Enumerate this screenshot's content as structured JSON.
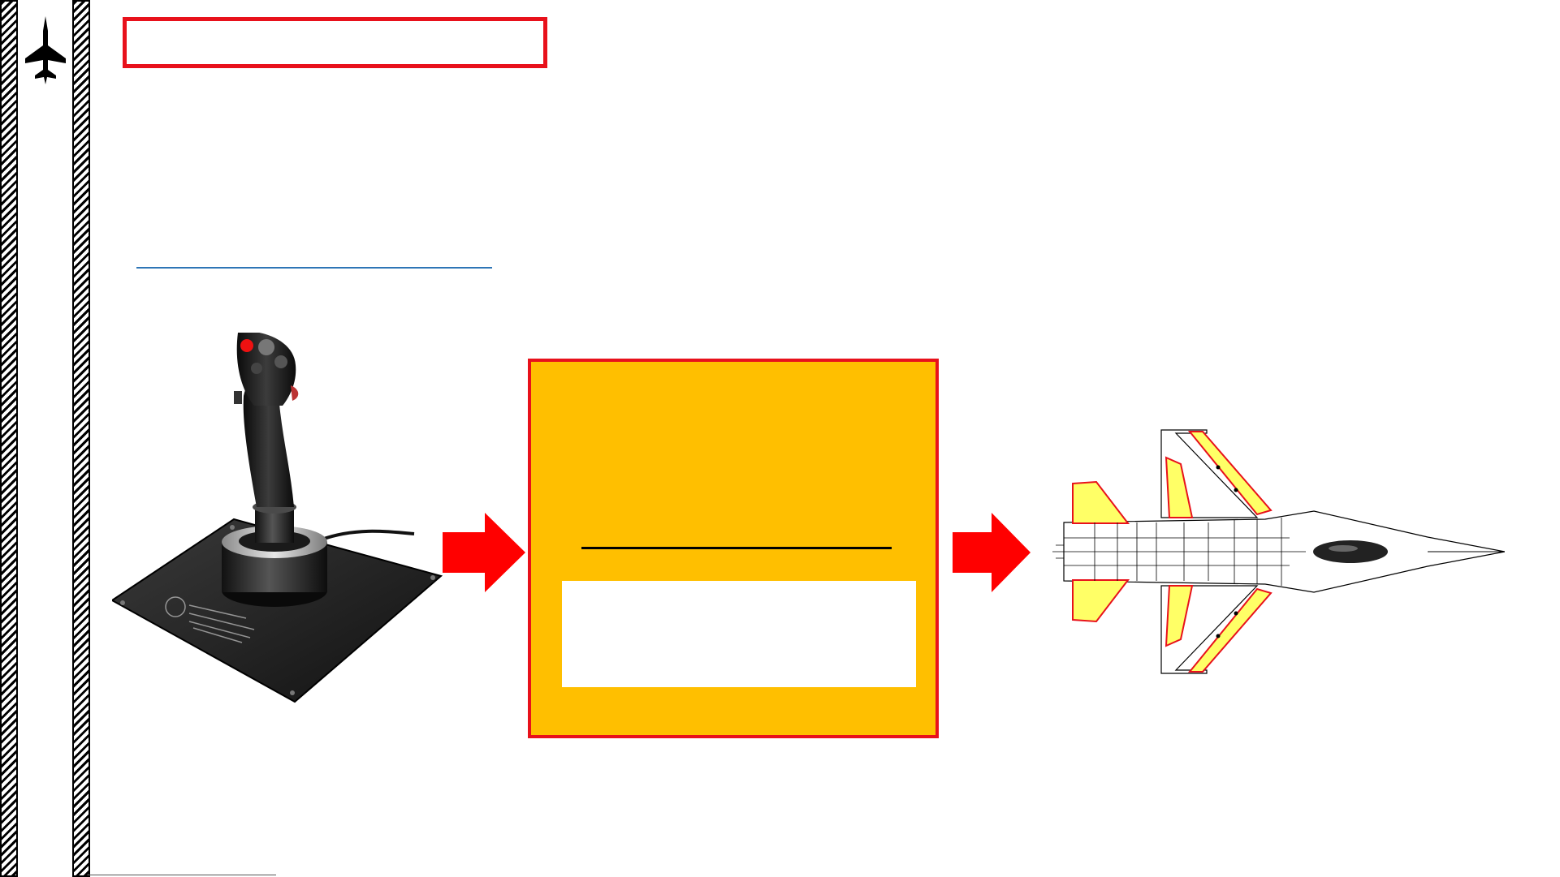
{
  "slide": {
    "title": "",
    "colors": {
      "accent_red": "#e8111b",
      "box_fill": "#ffbf00",
      "link_rule": "#2e75b6",
      "wing_fill": "#ffff66"
    },
    "icons": {
      "logo": "fighter-jet-silhouette-icon",
      "arrow": "right-arrow-icon"
    },
    "images": {
      "joystick": "hotas-joystick-image",
      "aircraft": "fighter-jet-top-view-diagram"
    },
    "logic_box": {
      "heading": "",
      "body": ""
    }
  }
}
